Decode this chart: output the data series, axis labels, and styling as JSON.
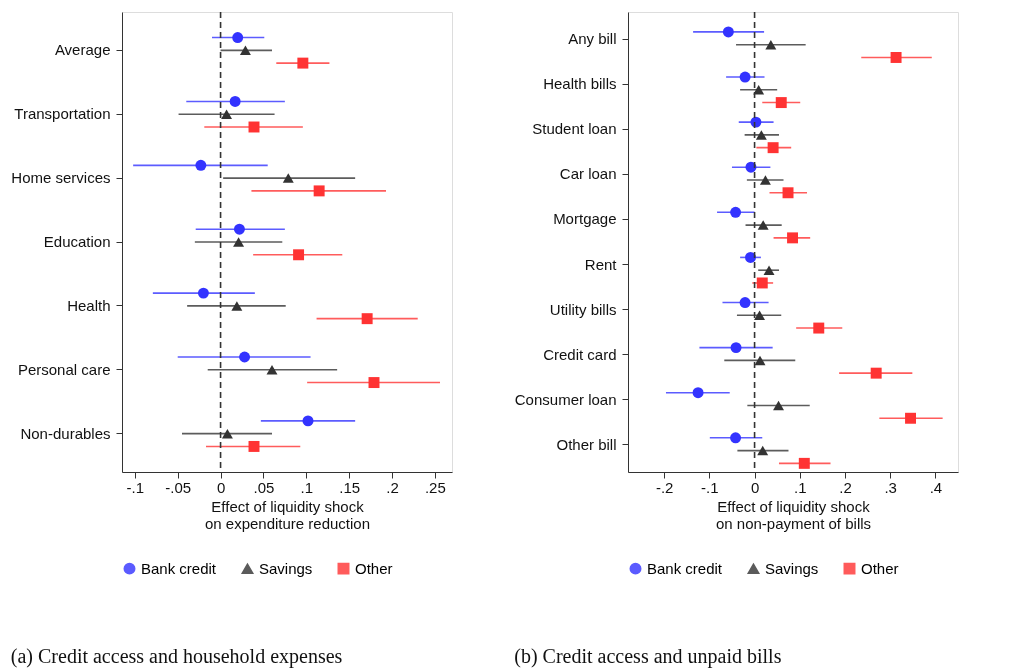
{
  "chart_data": [
    {
      "type": "scatter",
      "orientation": "horizontal",
      "categories": [
        "Average",
        "Transportation",
        "Home services",
        "Education",
        "Health",
        "Personal care",
        "Non-durables"
      ],
      "xlabel": "Effect of liquidity shock on expenditure reduction",
      "xlim": [
        -0.115,
        0.27
      ],
      "xticks": [
        {
          "value": -0.1,
          "label": "-.1"
        },
        {
          "value": -0.05,
          "label": "-.05"
        },
        0,
        {
          "value": 0.05,
          "label": ".05"
        },
        {
          "value": 0.1,
          "label": ".1"
        },
        {
          "value": 0.15,
          "label": ".15"
        },
        {
          "value": 0.2,
          "label": ".2"
        },
        {
          "value": 0.25,
          "label": ".25"
        }
      ],
      "ref_lines": [
        {
          "axis": "x",
          "value": 0,
          "line_style": "dashed",
          "color": "#333333"
        }
      ],
      "legend": "bottom",
      "grid": false,
      "annotations": [
        "(a)  Credit access and household expenses"
      ],
      "series": [
        {
          "name": "Bank credit",
          "color": "#3333ff",
          "marker": "circle",
          "values": [
            0.02,
            0.017,
            -0.023,
            0.022,
            -0.02,
            0.028,
            0.102
          ],
          "errors": [
            [
              -0.01,
              0.051
            ],
            [
              -0.04,
              0.075
            ],
            [
              -0.102,
              0.055
            ],
            [
              -0.029,
              0.075
            ],
            [
              -0.079,
              0.04
            ],
            [
              -0.05,
              0.105
            ],
            [
              0.047,
              0.157
            ]
          ]
        },
        {
          "name": "Savings",
          "color": "#333333",
          "marker": "triangle",
          "values": [
            0.029,
            0.007,
            0.079,
            0.021,
            0.019,
            0.06,
            0.008
          ],
          "errors": [
            [
              0.0,
              0.06
            ],
            [
              -0.049,
              0.063
            ],
            [
              0.003,
              0.157
            ],
            [
              -0.03,
              0.072
            ],
            [
              -0.039,
              0.076
            ],
            [
              -0.015,
              0.136
            ],
            [
              -0.045,
              0.06
            ]
          ]
        },
        {
          "name": "Other",
          "color": "#ff3333",
          "marker": "square",
          "values": [
            0.096,
            0.039,
            0.115,
            0.091,
            0.171,
            0.179,
            0.039
          ],
          "errors": [
            [
              0.065,
              0.127
            ],
            [
              -0.019,
              0.096
            ],
            [
              0.036,
              0.193
            ],
            [
              0.038,
              0.142
            ],
            [
              0.112,
              0.23
            ],
            [
              0.101,
              0.256
            ],
            [
              -0.017,
              0.093
            ]
          ]
        }
      ]
    },
    {
      "type": "scatter",
      "orientation": "horizontal",
      "categories": [
        "Any bill",
        "Health bills",
        "Student loan",
        "Car loan",
        "Mortgage",
        "Rent",
        "Utility bills",
        "Credit card",
        "Consumer loan",
        "Other bill"
      ],
      "xlabel": "Effect of liquidity shock on non-payment of bills",
      "xlim": [
        -0.28,
        0.45
      ],
      "xticks": [
        {
          "value": -0.2,
          "label": "-.2"
        },
        {
          "value": -0.1,
          "label": "-.1"
        },
        0,
        {
          "value": 0.1,
          "label": ".1"
        },
        {
          "value": 0.2,
          "label": ".2"
        },
        {
          "value": 0.3,
          "label": ".3"
        },
        {
          "value": 0.4,
          "label": ".4"
        }
      ],
      "ref_lines": [
        {
          "axis": "x",
          "value": 0,
          "line_style": "dashed",
          "color": "#333333"
        }
      ],
      "legend": "bottom",
      "grid": false,
      "annotations": [
        "(b)  Credit access and unpaid bills"
      ],
      "series": [
        {
          "name": "Bank credit",
          "color": "#3333ff",
          "marker": "circle",
          "values": [
            -0.058,
            -0.021,
            0.003,
            -0.008,
            -0.042,
            -0.009,
            -0.021,
            -0.041,
            -0.125,
            -0.042
          ],
          "errors": [
            [
              -0.136,
              0.021
            ],
            [
              -0.063,
              0.022
            ],
            [
              -0.035,
              0.042
            ],
            [
              -0.05,
              0.035
            ],
            [
              -0.083,
              0.0
            ],
            [
              -0.032,
              0.014
            ],
            [
              -0.071,
              0.031
            ],
            [
              -0.122,
              0.04
            ],
            [
              -0.196,
              -0.055
            ],
            [
              -0.099,
              0.017
            ]
          ]
        },
        {
          "name": "Savings",
          "color": "#333333",
          "marker": "triangle",
          "values": [
            0.036,
            0.009,
            0.015,
            0.024,
            0.019,
            0.032,
            0.011,
            0.012,
            0.053,
            0.018
          ],
          "errors": [
            [
              -0.041,
              0.113
            ],
            [
              -0.032,
              0.05
            ],
            [
              -0.022,
              0.054
            ],
            [
              -0.017,
              0.064
            ],
            [
              -0.02,
              0.06
            ],
            [
              0.008,
              0.054
            ],
            [
              -0.039,
              0.059
            ],
            [
              -0.067,
              0.09
            ],
            [
              -0.016,
              0.122
            ],
            [
              -0.038,
              0.075
            ]
          ]
        },
        {
          "name": "Other",
          "color": "#ff3333",
          "marker": "square",
          "values": [
            0.313,
            0.059,
            0.041,
            0.074,
            0.084,
            0.017,
            0.142,
            0.269,
            0.345,
            0.11
          ],
          "errors": [
            [
              0.236,
              0.392
            ],
            [
              0.017,
              0.101
            ],
            [
              0.004,
              0.081
            ],
            [
              0.033,
              0.116
            ],
            [
              0.042,
              0.123
            ],
            [
              -0.005,
              0.041
            ],
            [
              0.092,
              0.194
            ],
            [
              0.187,
              0.349
            ],
            [
              0.276,
              0.416
            ],
            [
              0.054,
              0.168
            ]
          ]
        }
      ]
    }
  ]
}
